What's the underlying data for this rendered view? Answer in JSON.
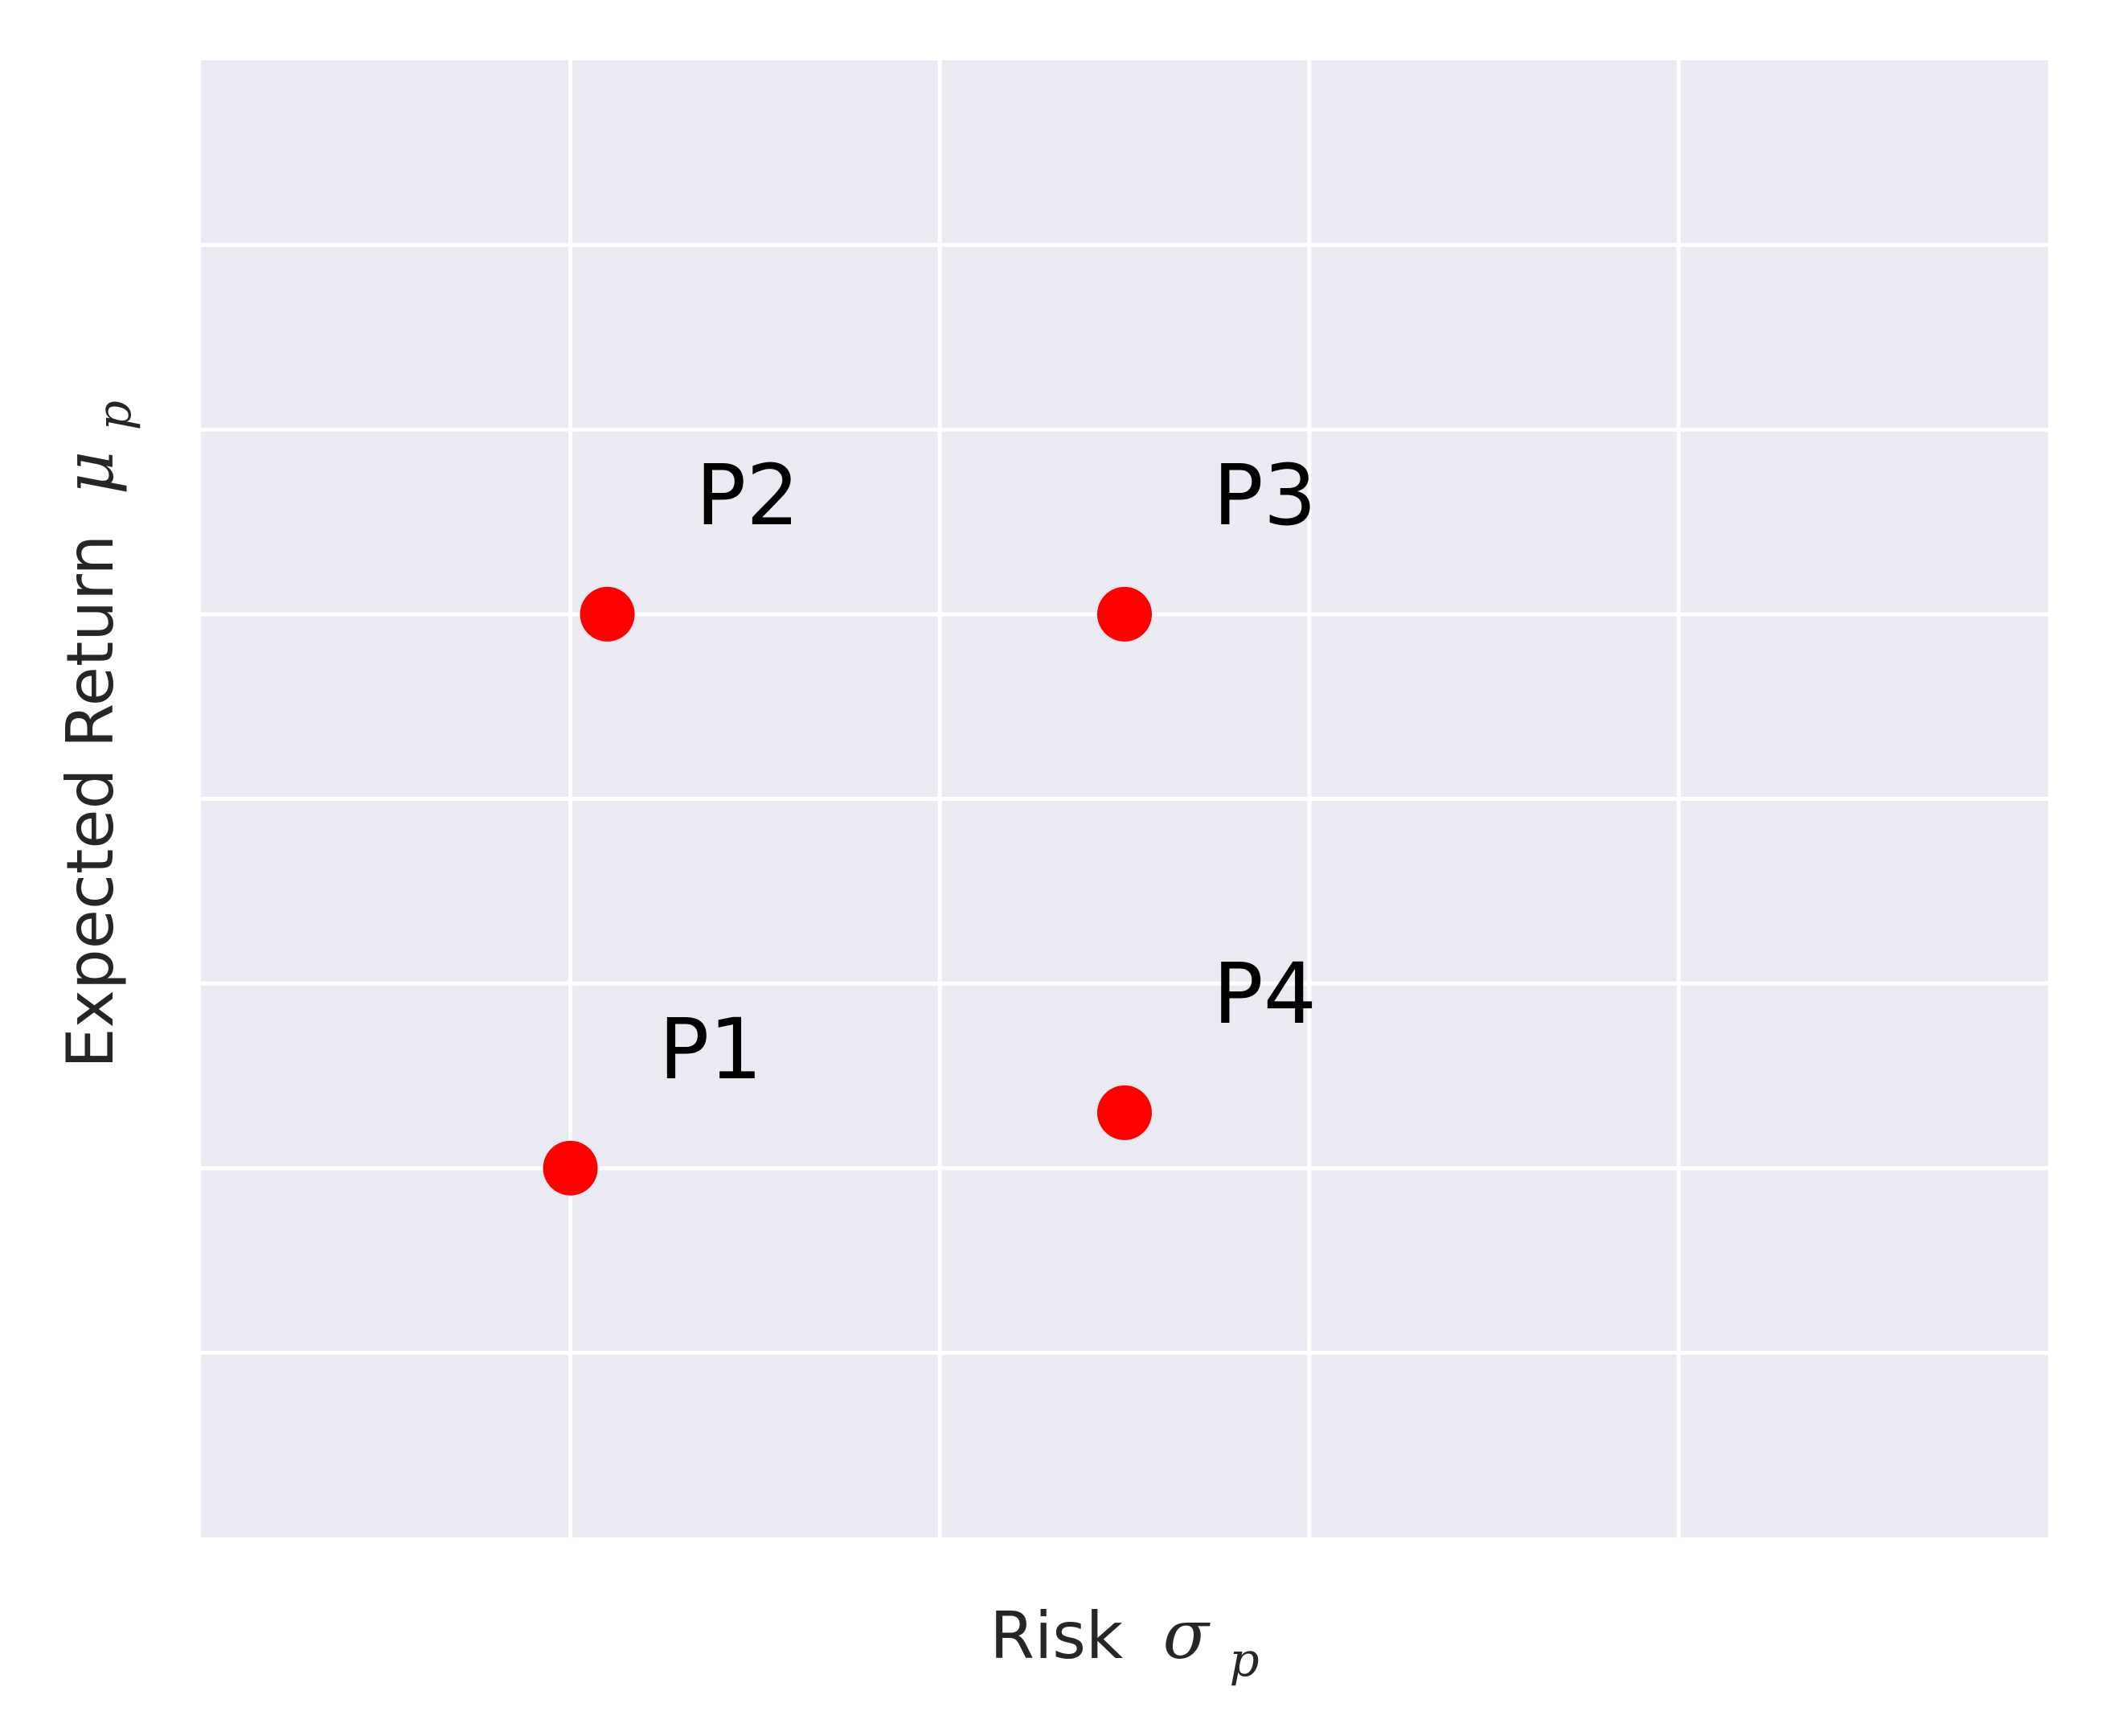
{
  "chart_data": {
    "type": "scatter",
    "title": "",
    "xlabel": {
      "text": "Risk",
      "symbol": "σ",
      "subscript": "p"
    },
    "ylabel": {
      "text": "Expected Return",
      "symbol": "μ",
      "subscript": "p"
    },
    "xlim": [
      0,
      5
    ],
    "ylim": [
      0,
      8
    ],
    "x_ticks": [
      1,
      2,
      3,
      4
    ],
    "y_ticks": [
      1,
      2,
      3,
      4,
      5,
      6,
      7
    ],
    "tick_labels_visible": false,
    "grid": true,
    "legend": "none",
    "colors": {
      "plot_background": "#eaeaf2",
      "grid": "#ffffff",
      "marker": "#ff0000",
      "text": "#262626"
    },
    "points": [
      {
        "label": "P1",
        "x": 1.0,
        "y": 2.0
      },
      {
        "label": "P2",
        "x": 1.1,
        "y": 5.0
      },
      {
        "label": "P3",
        "x": 2.5,
        "y": 5.0
      },
      {
        "label": "P4",
        "x": 2.5,
        "y": 2.3
      }
    ]
  }
}
